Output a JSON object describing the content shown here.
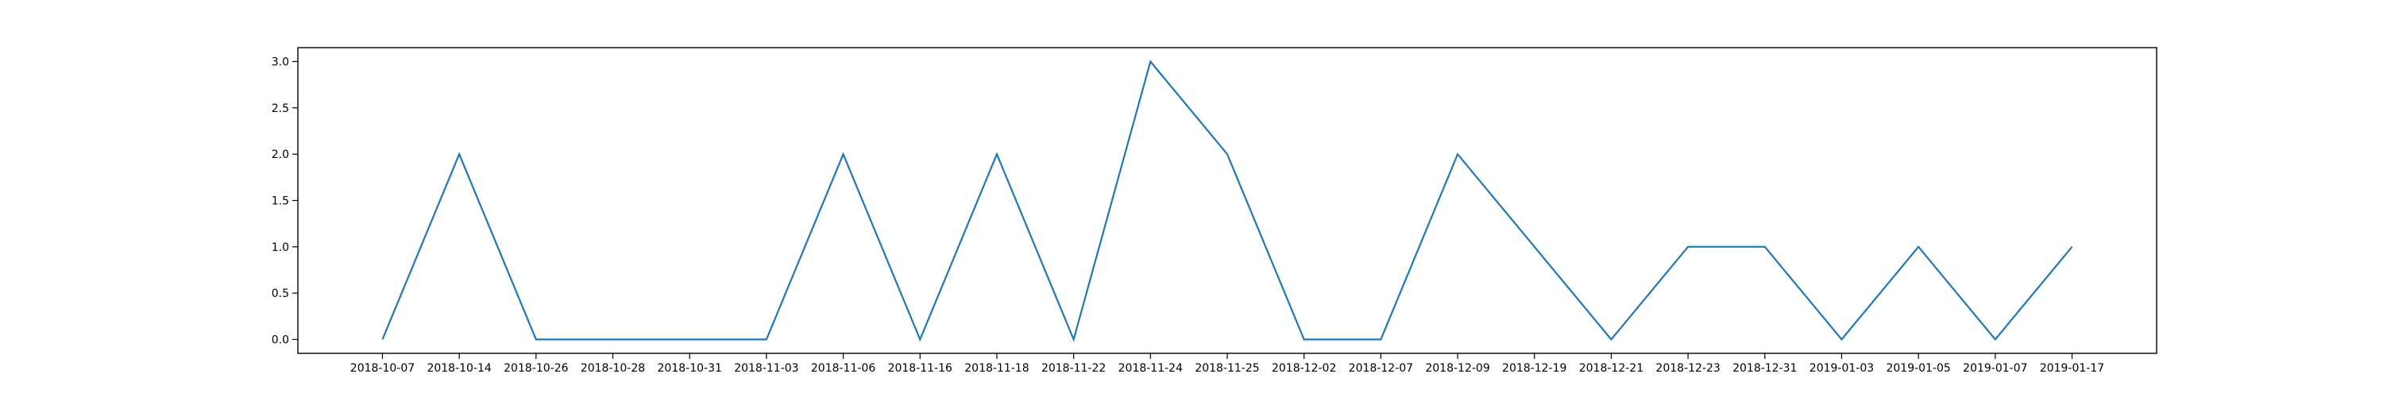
{
  "chart_data": {
    "type": "line",
    "title": "",
    "xlabel": "",
    "ylabel": "",
    "x": [
      "2018-10-07",
      "2018-10-14",
      "2018-10-26",
      "2018-10-28",
      "2018-10-31",
      "2018-11-03",
      "2018-11-06",
      "2018-11-16",
      "2018-11-18",
      "2018-11-22",
      "2018-11-24",
      "2018-11-25",
      "2018-12-02",
      "2018-12-07",
      "2018-12-09",
      "2018-12-19",
      "2018-12-21",
      "2018-12-23",
      "2018-12-31",
      "2019-01-03",
      "2019-01-05",
      "2019-01-07",
      "2019-01-17"
    ],
    "series": [
      {
        "values": [
          0,
          2,
          0,
          0,
          0,
          0,
          2,
          0,
          2,
          0,
          3,
          2,
          0,
          0,
          2,
          1,
          0,
          1,
          1,
          0,
          1,
          0,
          1
        ],
        "color": "#1f77b4"
      }
    ],
    "ylim": [
      -0.15,
      3.15
    ],
    "yticks": [
      "0.0",
      "0.5",
      "1.0",
      "1.5",
      "2.0",
      "2.5",
      "3.0"
    ],
    "grid": false,
    "legend": "none"
  }
}
